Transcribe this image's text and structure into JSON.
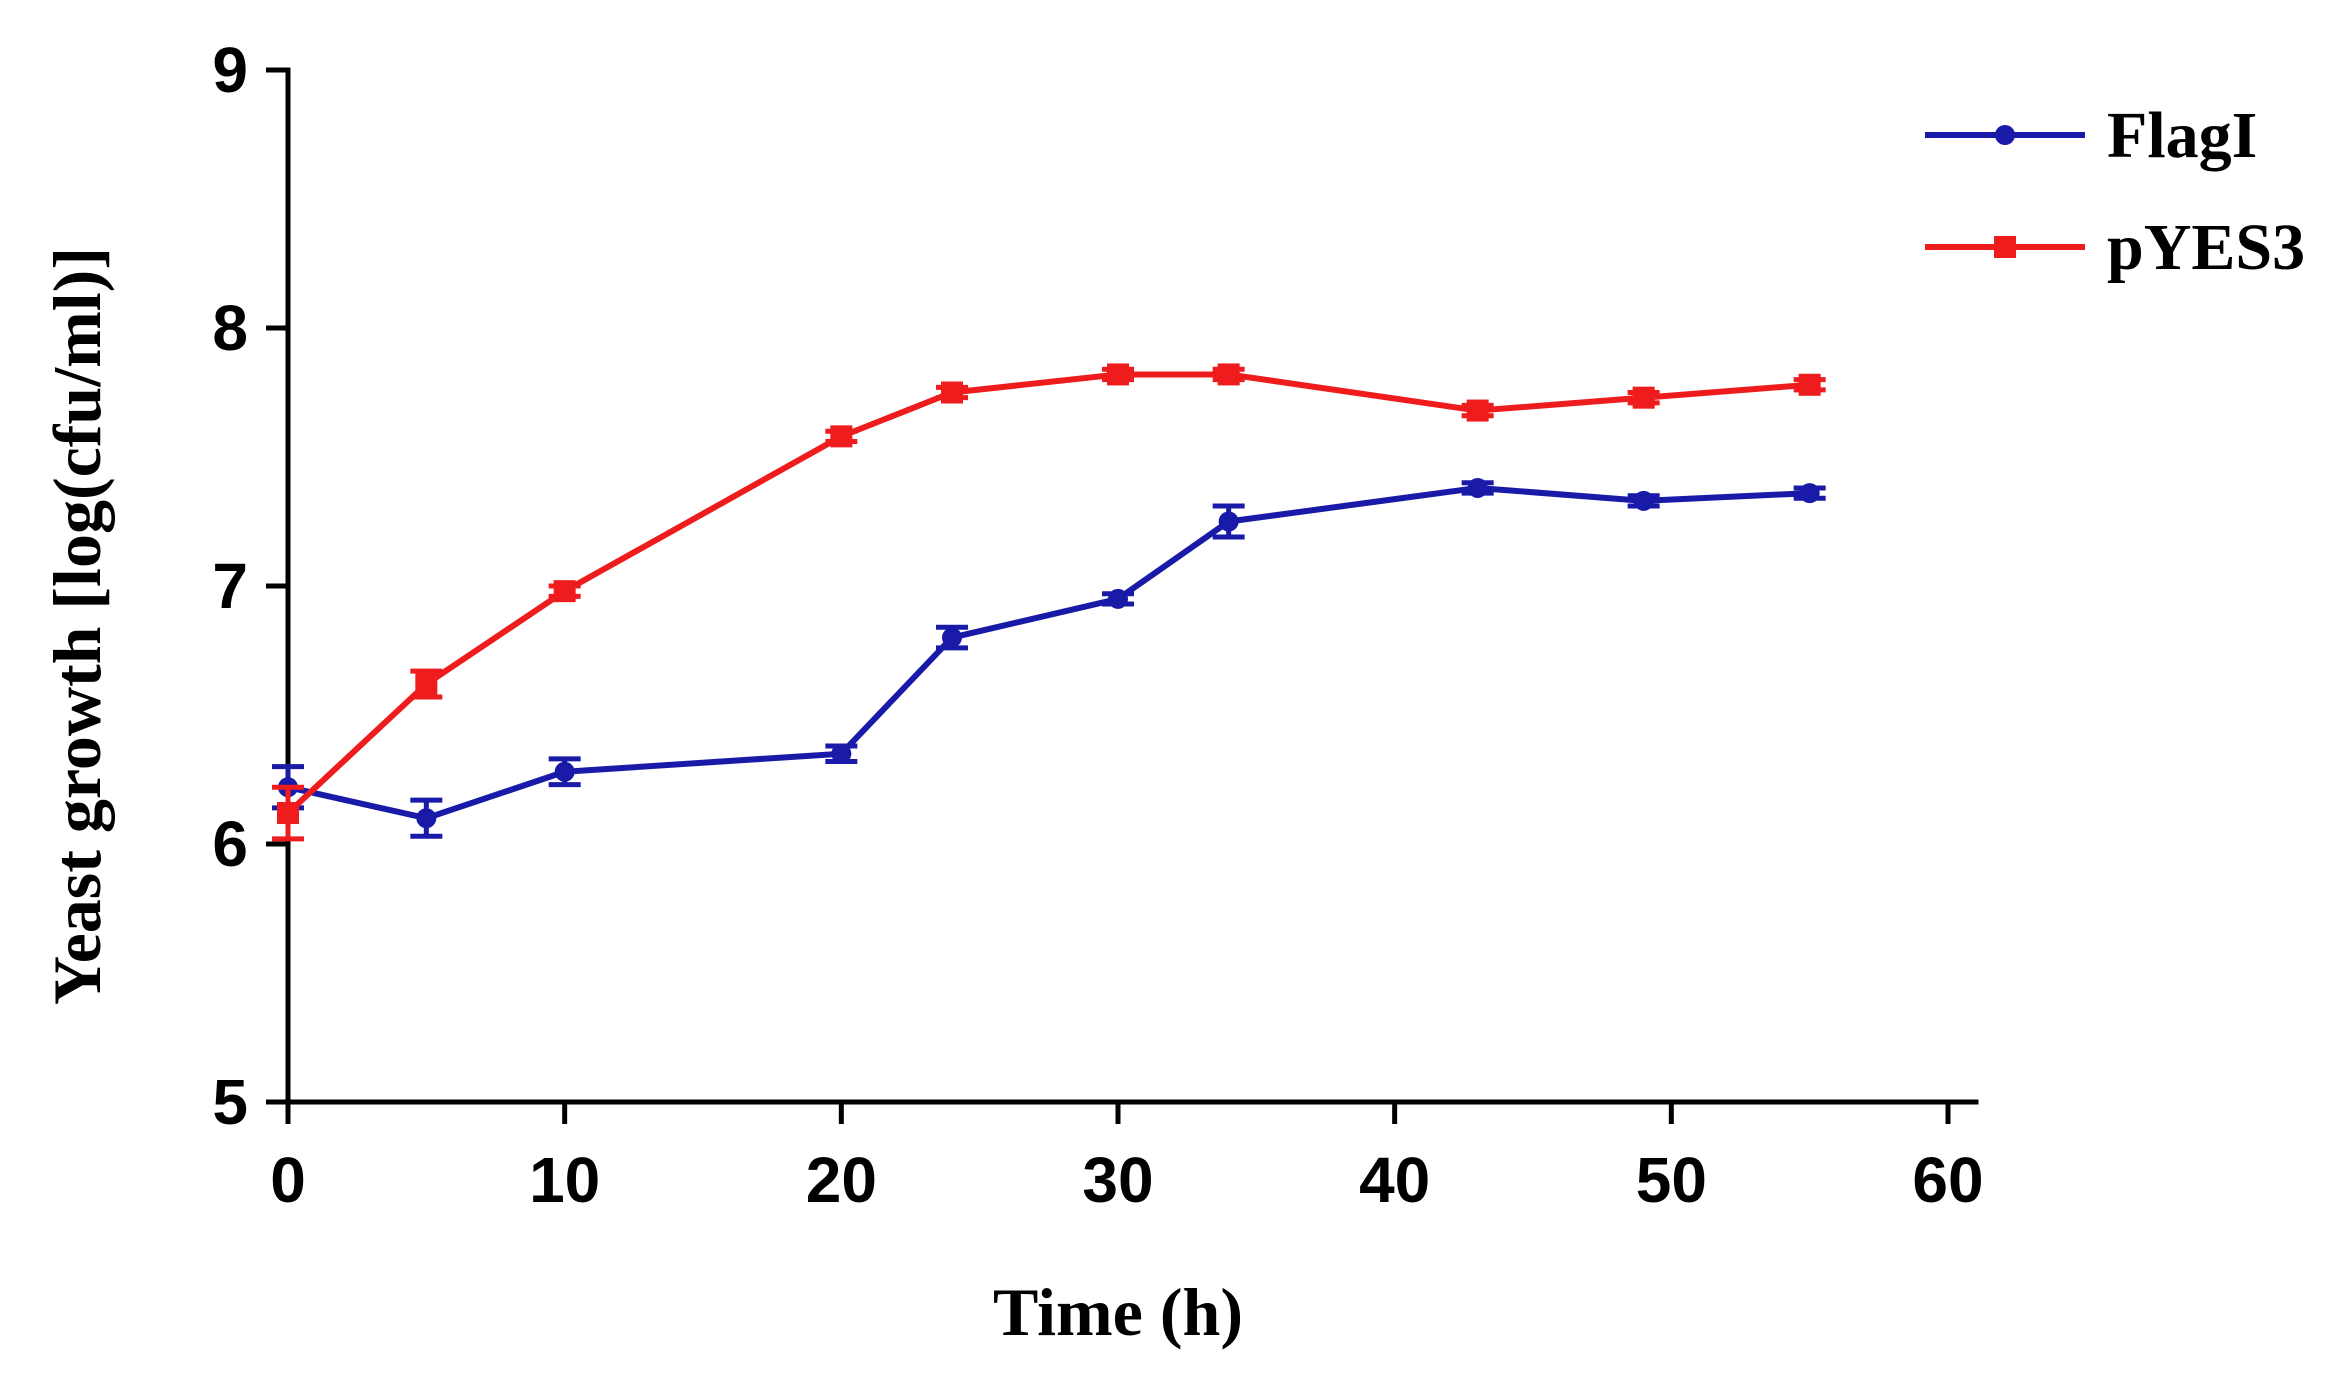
{
  "chart_data": {
    "type": "line",
    "title": "",
    "xlabel": "Time (h)",
    "ylabel": "Yeast growth [log(cfu/ml)]",
    "xlim": [
      0,
      60
    ],
    "ylim": [
      5,
      9
    ],
    "xticks": [
      0,
      10,
      20,
      30,
      40,
      50,
      60
    ],
    "yticks": [
      5,
      6,
      7,
      8,
      9
    ],
    "xtick_labels": [
      "0",
      "10",
      "20",
      "30",
      "40",
      "50",
      "60"
    ],
    "ytick_labels": [
      "5",
      "6",
      "7",
      "8",
      "9"
    ],
    "grid": false,
    "legend_position": "top-right",
    "series": [
      {
        "name": "FlagI",
        "color": "#1a1aa8",
        "marker": "circle",
        "x": [
          0,
          5,
          10,
          20,
          24,
          30,
          34,
          43,
          49,
          55
        ],
        "y": [
          6.22,
          6.1,
          6.28,
          6.35,
          6.8,
          6.95,
          7.25,
          7.38,
          7.33,
          7.36
        ],
        "err": [
          0.08,
          0.07,
          0.05,
          0.03,
          0.04,
          0.02,
          0.06,
          0.02,
          0.02,
          0.02
        ]
      },
      {
        "name": "pYES3",
        "color": "#ee1c1c",
        "marker": "square",
        "x": [
          0,
          5,
          10,
          20,
          24,
          30,
          34,
          43,
          49,
          55
        ],
        "y": [
          6.12,
          6.62,
          6.98,
          7.58,
          7.75,
          7.82,
          7.82,
          7.68,
          7.73,
          7.78
        ],
        "err": [
          0.1,
          0.05,
          0.02,
          0.02,
          0.02,
          0.02,
          0.02,
          0.02,
          0.02,
          0.02
        ]
      }
    ]
  }
}
